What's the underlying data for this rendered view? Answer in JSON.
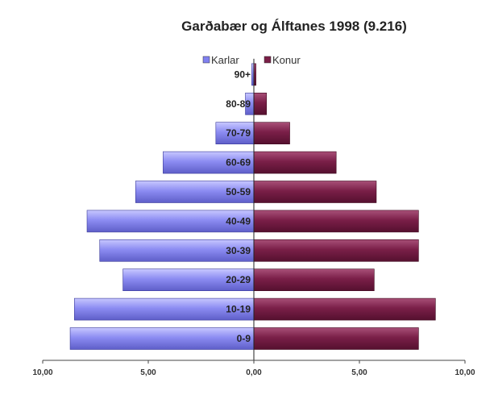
{
  "chart_data": {
    "type": "bar",
    "orientation": "horizontal-diverging",
    "title": "Garðabær og Álftanes 1998 (9.216)",
    "categories": [
      "0-9",
      "10-19",
      "20-29",
      "30-39",
      "40-49",
      "50-59",
      "60-69",
      "70-79",
      "80-89",
      "90+"
    ],
    "series": [
      {
        "name": "Karlar",
        "values": [
          8.7,
          8.5,
          6.2,
          7.3,
          7.9,
          5.6,
          4.3,
          1.8,
          0.4,
          0.1
        ],
        "color": "#8080f0"
      },
      {
        "name": "Konur",
        "values": [
          7.8,
          8.6,
          5.7,
          7.8,
          7.8,
          5.8,
          3.9,
          1.7,
          0.6,
          0.1
        ],
        "color": "#7a1f48"
      }
    ],
    "xlim": [
      -10,
      10
    ],
    "xticks": [
      "10,00",
      "5,00",
      "0,00",
      "5,00",
      "10,00"
    ],
    "legend_position": "top-center",
    "grid": false
  }
}
